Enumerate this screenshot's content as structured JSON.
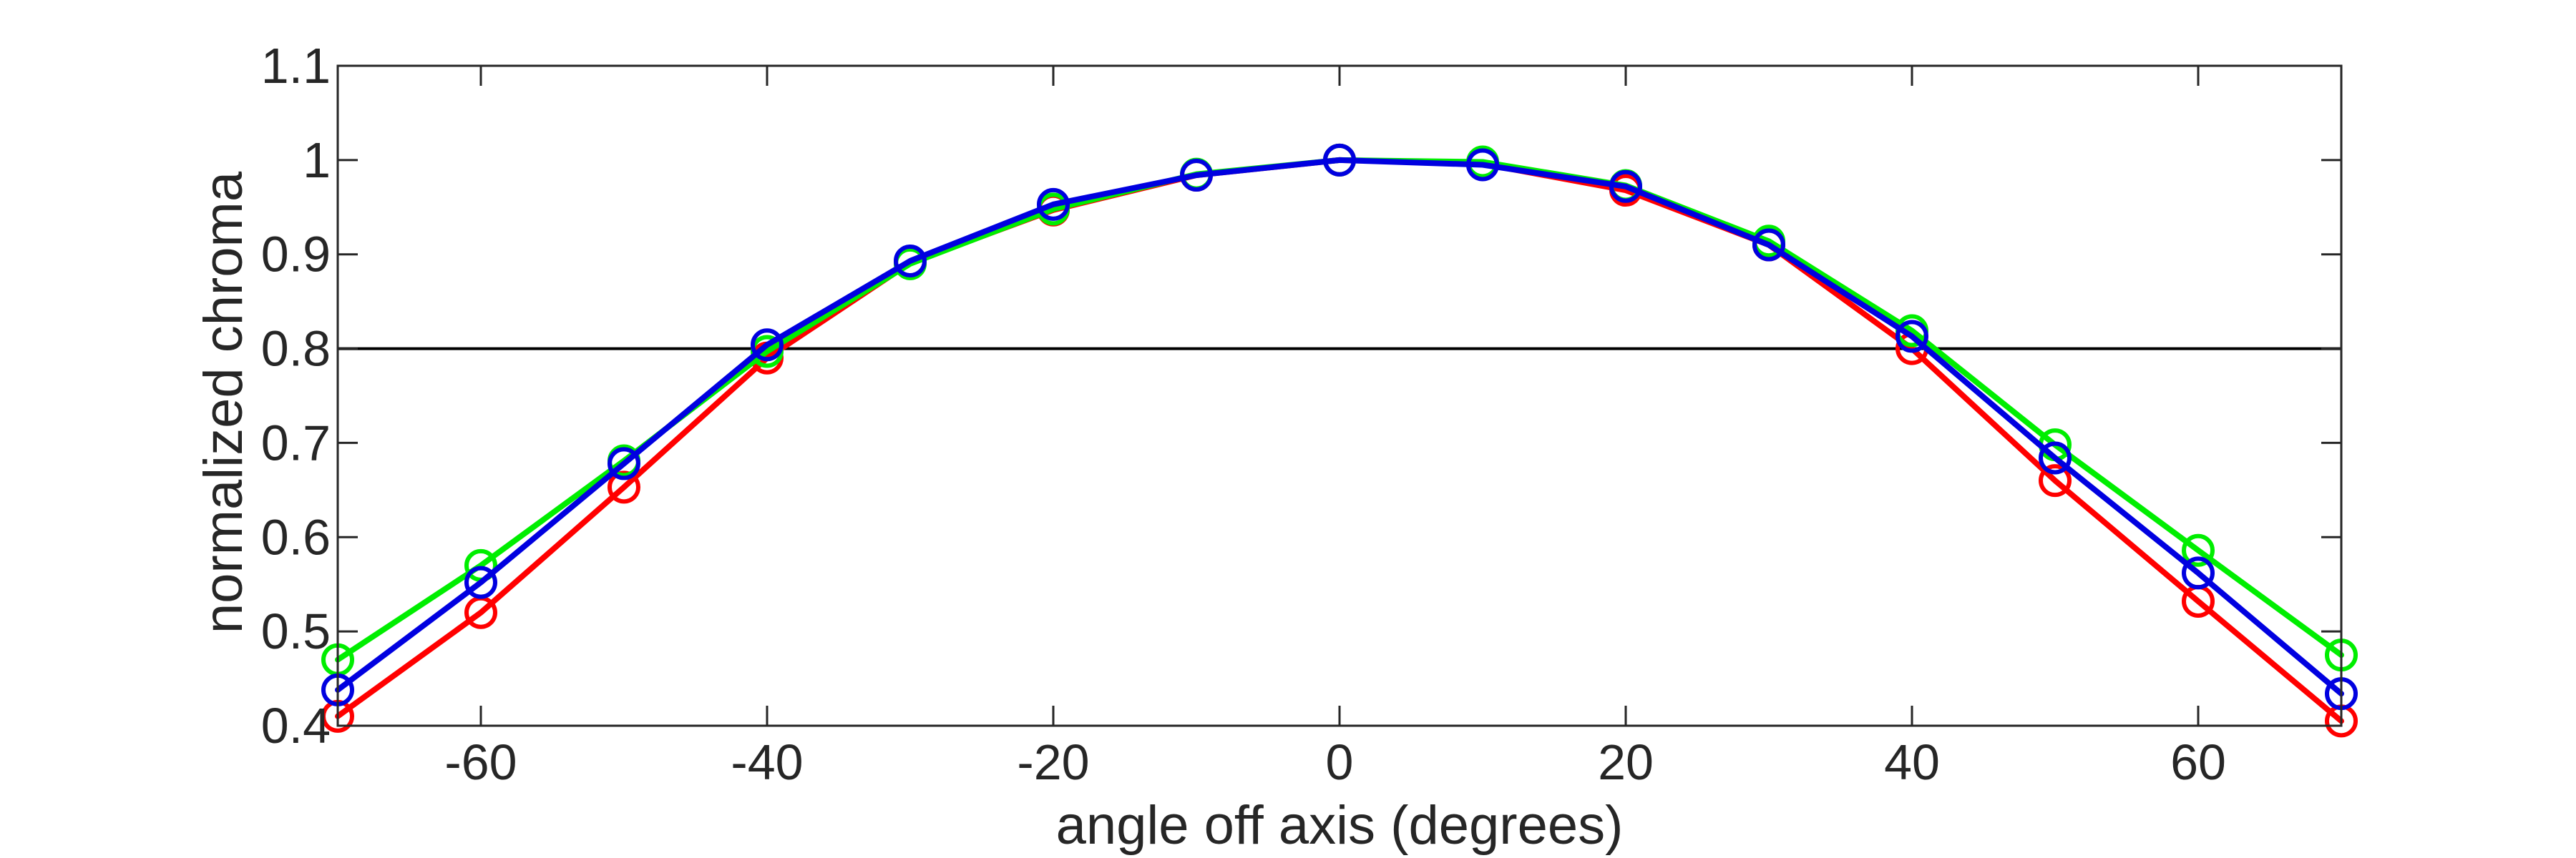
{
  "chart_data": {
    "type": "line",
    "xlabel": "angle off axis (degrees)",
    "ylabel": "normalized chroma",
    "xlim": [
      -70,
      70
    ],
    "ylim": [
      0.4,
      1.1
    ],
    "xticks": [
      -60,
      -40,
      -20,
      0,
      20,
      40,
      60
    ],
    "xtick_labels": [
      "-60",
      "-40",
      "-20",
      "0",
      "20",
      "40",
      "60"
    ],
    "yticks": [
      0.4,
      0.5,
      0.6,
      0.7,
      0.8,
      0.9,
      1.0,
      1.1
    ],
    "ytick_labels": [
      "0.4",
      "0.5",
      "0.6",
      "0.7",
      "0.8",
      "0.9",
      "1",
      "1.1"
    ],
    "grid": false,
    "reference_line": {
      "y": 0.8,
      "color": "#000000"
    },
    "x": [
      -70,
      -60,
      -50,
      -40,
      -30,
      -20,
      -10,
      0,
      10,
      20,
      30,
      40,
      50,
      60,
      70
    ],
    "series": [
      {
        "color": "#ff0000",
        "values": [
          0.41,
          0.52,
          0.653,
          0.79,
          0.891,
          0.947,
          0.984,
          1.0,
          0.996,
          0.968,
          0.91,
          0.8,
          0.66,
          0.532,
          0.405
        ]
      },
      {
        "color": "#00ee00",
        "values": [
          0.47,
          0.57,
          0.681,
          0.797,
          0.89,
          0.948,
          0.985,
          1.0,
          0.998,
          0.973,
          0.914,
          0.819,
          0.698,
          0.586,
          0.475
        ]
      },
      {
        "color": "#0000e0",
        "values": [
          0.438,
          0.552,
          0.678,
          0.804,
          0.893,
          0.953,
          0.984,
          1.0,
          0.995,
          0.972,
          0.91,
          0.813,
          0.684,
          0.562,
          0.434
        ]
      }
    ]
  }
}
